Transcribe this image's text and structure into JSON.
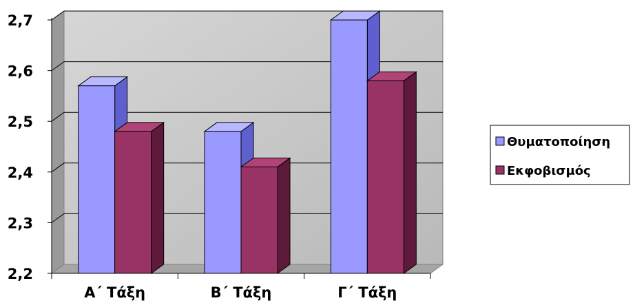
{
  "chart_data": {
    "type": "bar",
    "style": "3d-clustered-column",
    "categories": [
      "Α΄ Τάξη",
      "Β΄ Τάξη",
      "Γ΄ Τάξη"
    ],
    "series": [
      {
        "name": "Θυματοποίηση",
        "values": [
          2.57,
          2.48,
          2.7
        ]
      },
      {
        "name": "Εκφοβισμός",
        "values": [
          2.48,
          2.41,
          2.58
        ]
      }
    ],
    "y_ticks": [
      "2,2",
      "2,3",
      "2,4",
      "2,5",
      "2,6",
      "2,7"
    ],
    "ylim": [
      2.2,
      2.7
    ],
    "grid": true,
    "legend_position": "right",
    "colors": {
      "series": [
        "#9999ff",
        "#993366"
      ],
      "series_side": [
        "#5f5fd0",
        "#5e1a3a"
      ],
      "series_top": [
        "#b8b8ff",
        "#b04476"
      ],
      "wall": "#c8c8c8",
      "wall_side": "#9a9a9a",
      "floor": "#a6a6a6",
      "gridline": "#000000"
    }
  }
}
